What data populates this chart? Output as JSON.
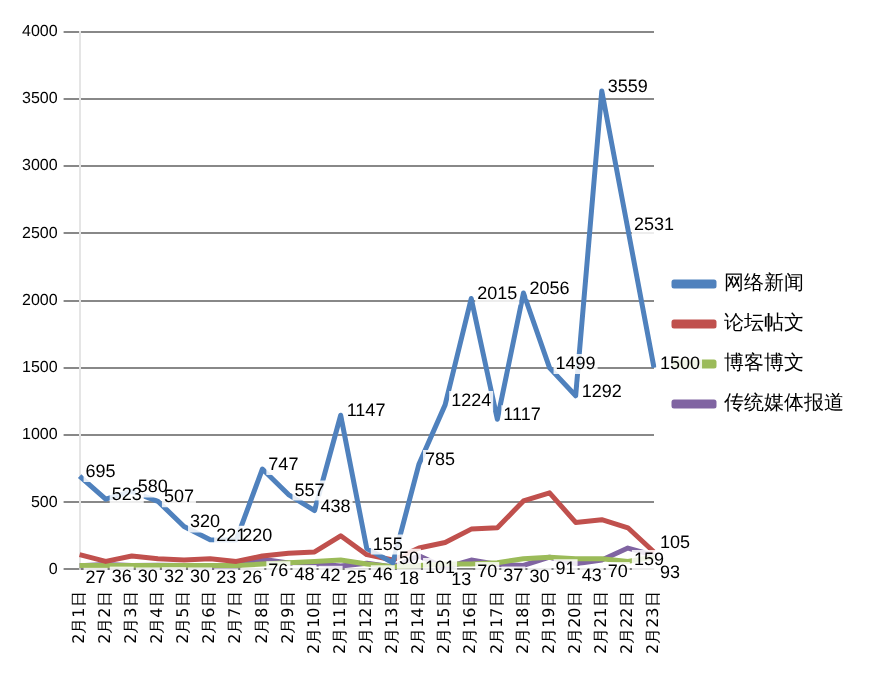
{
  "chart_data": {
    "type": "line",
    "categories": [
      "2月1日",
      "2月2日",
      "2月3日",
      "2月4日",
      "2月5日",
      "2月6日",
      "2月7日",
      "2月8日",
      "2月9日",
      "2月10日",
      "2月11日",
      "2月12日",
      "2月13日",
      "2月14日",
      "2月15日",
      "2月16日",
      "2月17日",
      "2月18日",
      "2月19日",
      "2月20日",
      "2月21日",
      "2月22日",
      "2月23日"
    ],
    "series": [
      {
        "name": "网络新闻",
        "color": "#4f81bd",
        "values": [
          695,
          523,
          580,
          507,
          320,
          221,
          220,
          747,
          557,
          438,
          1147,
          155,
          50,
          785,
          1224,
          2015,
          1117,
          2056,
          1499,
          1292,
          3559,
          2531,
          1500
        ],
        "value_labels": [
          "695",
          "523",
          "580",
          "507",
          "320",
          "221",
          "220",
          "747",
          "557",
          "438",
          "1147",
          "155",
          "50",
          "785",
          "1224",
          "2015",
          "1117",
          "2056",
          "1499",
          "1292",
          "3559",
          "2531",
          "1500"
        ]
      },
      {
        "name": "论坛帖文",
        "color": "#c0504d",
        "values": [
          110,
          60,
          100,
          80,
          70,
          80,
          60,
          100,
          120,
          130,
          250,
          110,
          70,
          160,
          200,
          300,
          310,
          510,
          570,
          350,
          370,
          310,
          130
        ]
      },
      {
        "name": "博客博文",
        "color": "#9bbb59",
        "values": [
          30,
          30,
          30,
          30,
          30,
          30,
          30,
          40,
          50,
          60,
          70,
          40,
          20,
          30,
          40,
          40,
          50,
          80,
          90,
          80,
          80,
          60,
          93
        ],
        "value_labels": [
          null,
          null,
          null,
          null,
          null,
          null,
          null,
          null,
          null,
          null,
          null,
          null,
          null,
          null,
          null,
          null,
          null,
          null,
          null,
          null,
          null,
          null,
          "93"
        ]
      },
      {
        "name": "传统媒体报道",
        "color": "#8064a2",
        "values": [
          27,
          36,
          30,
          32,
          30,
          23,
          26,
          76,
          48,
          42,
          25,
          46,
          18,
          101,
          13,
          70,
          37,
          30,
          91,
          43,
          70,
          159,
          105
        ],
        "value_labels": [
          "27",
          "36",
          "30",
          "32",
          "30",
          "23",
          "26",
          "76",
          "48",
          "42",
          "25",
          "46",
          "18",
          "101",
          "13",
          "70",
          "37",
          "30",
          "91",
          "43",
          "70",
          "159",
          "105"
        ]
      }
    ],
    "ylim": [
      0,
      4000
    ],
    "yticks": [
      0,
      500,
      1000,
      1500,
      2000,
      2500,
      3000,
      3500,
      4000
    ],
    "grid": "y",
    "legend": "right",
    "marker": "none"
  }
}
